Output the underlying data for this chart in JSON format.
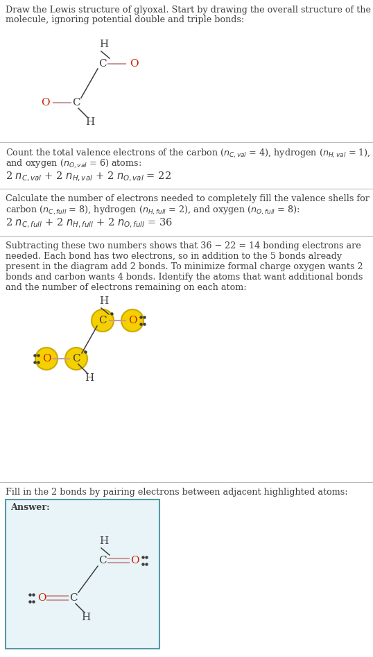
{
  "bg_color": "#ffffff",
  "text_color": "#3d3d3d",
  "red_color": "#cc2200",
  "bond_color": "#cc9999",
  "bond_color_dark": "#888888",
  "highlight_color": "#f5d000",
  "highlight_border": "#ccaa00",
  "div_color": "#bbbbbb",
  "answer_bg": "#e8f4f8",
  "answer_border": "#5599aa",
  "font_size_body": 9.2,
  "font_size_atom": 11,
  "font_size_eq": 10.5
}
